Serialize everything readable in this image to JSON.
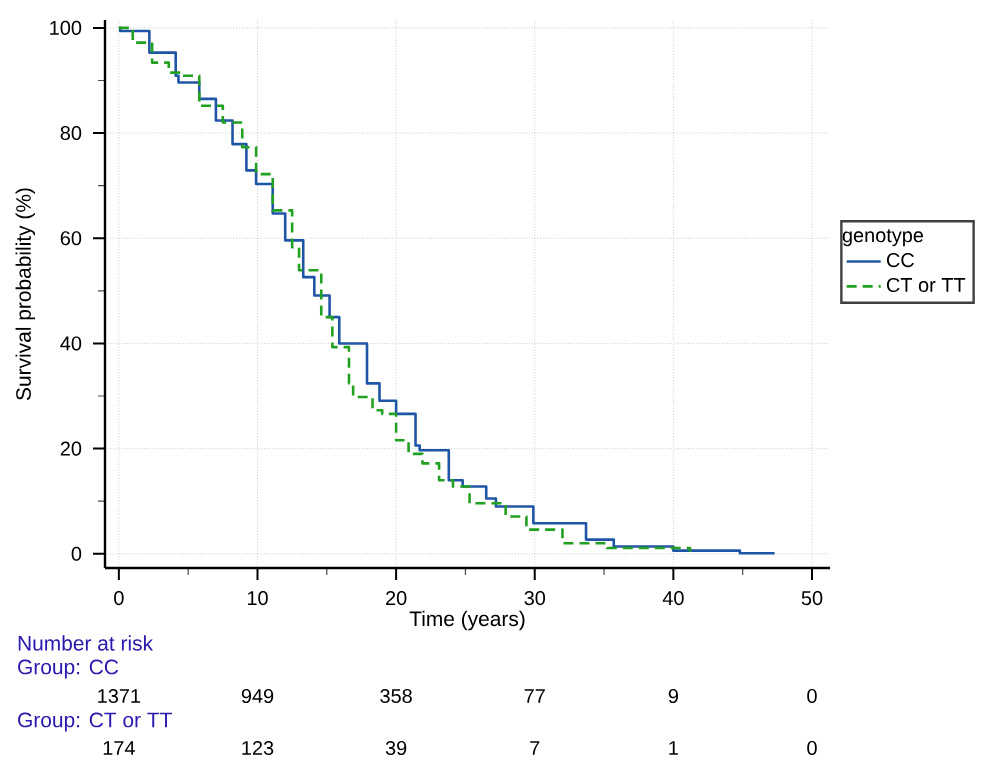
{
  "chart_data": {
    "type": "step",
    "xlabel": "Time (years)",
    "ylabel": "Survival probability (%)",
    "legend_title": "genotype",
    "legend": "right",
    "grid": true,
    "xlim": [
      -1,
      51.3
    ],
    "ylim": [
      -2.7,
      101.5
    ],
    "xticks": [
      0,
      {
        "value": 5,
        "label": null
      },
      10,
      {
        "value": 15,
        "label": null
      },
      20,
      {
        "value": 25,
        "label": null
      },
      30,
      {
        "value": 35,
        "label": null
      },
      40,
      {
        "value": 45,
        "label": null
      },
      50
    ],
    "yticks": [
      0,
      {
        "value": 10,
        "label": null
      },
      20,
      {
        "value": 30,
        "label": null
      },
      40,
      {
        "value": 50,
        "label": null
      },
      60,
      {
        "value": 70,
        "label": null
      },
      80,
      {
        "value": 90,
        "label": null
      },
      100
    ],
    "series": [
      {
        "name": "CC",
        "color": "#1f55a5",
        "line_style": "solid",
        "x": [
          0,
          0.1,
          2.2,
          4.1,
          4.3,
          5.8,
          7,
          8.2,
          9.2,
          9.9,
          11.1,
          12,
          13.3,
          14.1,
          15.2,
          15.9,
          17.9,
          18.8,
          20,
          21.4,
          21.7,
          23.8,
          24.8,
          26.5,
          27.2,
          29.9,
          33.7,
          35.7,
          40,
          44.8,
          47.3
        ],
        "values": [
          100,
          99.4,
          95.3,
          90.9,
          89.6,
          86.5,
          82.4,
          77.9,
          72.9,
          70.3,
          64.7,
          59.6,
          52.6,
          49.1,
          45,
          40,
          32.4,
          29.1,
          26.6,
          20.6,
          19.7,
          14,
          12.8,
          10.5,
          9,
          5.8,
          2.7,
          1.4,
          0.6,
          0.1,
          0.1
        ]
      },
      {
        "name": "CT or TT",
        "color": "#22a021",
        "line_style": "dashed",
        "x": [
          0,
          1,
          2.4,
          3.6,
          4.6,
          5.8,
          7.5,
          8.9,
          9.9,
          11.1,
          12.5,
          13,
          14.6,
          15.4,
          16.6,
          16.9,
          18.3,
          19,
          20,
          20.9,
          21.9,
          23.1,
          24.1,
          25.3,
          27.9,
          29.4,
          32,
          35.2,
          41.2
        ],
        "values": [
          100,
          97.2,
          93.4,
          91.5,
          90.9,
          85.2,
          82,
          77.3,
          72.2,
          65.3,
          58.3,
          53.9,
          45,
          39.3,
          32.4,
          29.8,
          27.3,
          26.6,
          21.6,
          19,
          17.2,
          14,
          12.8,
          9.6,
          7.1,
          4.6,
          2,
          1.1,
          0.4
        ]
      }
    ],
    "annotations": [
      "Number at risk",
      "Group: CC",
      "1371",
      "949",
      "358",
      "77",
      "9",
      "0",
      "Group: CT or TT",
      "174",
      "123",
      "39",
      "7",
      "1",
      "0"
    ]
  }
}
